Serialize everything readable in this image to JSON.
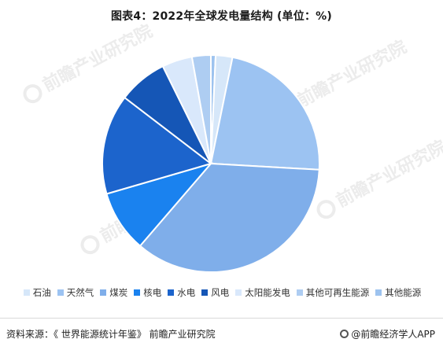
{
  "chart_data": {
    "type": "pie",
    "title": "图表4：2022年全球发电量结构 (单位：%)",
    "start_angle": "top",
    "direction": "clockwise",
    "slices": [
      {
        "name": "其他能源",
        "value": 0.7,
        "color": "#9dc3ef"
      },
      {
        "name": "石油",
        "value": 2.5,
        "color": "#d6e7f9"
      },
      {
        "name": "天然气",
        "value": 22.7,
        "color": "#9cc3f2"
      },
      {
        "name": "煤炭",
        "value": 35.4,
        "color": "#7faeea"
      },
      {
        "name": "核电",
        "value": 9.2,
        "color": "#1a82ef"
      },
      {
        "name": "水电",
        "value": 14.9,
        "color": "#1c64cc"
      },
      {
        "name": "风电",
        "value": 7.3,
        "color": "#1556b6"
      },
      {
        "name": "太阳能发电",
        "value": 4.5,
        "color": "#d9e8fb"
      },
      {
        "name": "其他可再生能源",
        "value": 2.8,
        "color": "#aecdf2"
      }
    ],
    "legend": {
      "placement": "bottom",
      "order": [
        "石油",
        "天然气",
        "煤炭",
        "核电",
        "水电",
        "风电",
        "太阳能发电",
        "其他可再生能源",
        "其他能源"
      ]
    }
  },
  "footer": {
    "source": "资料来源：《 世界能源统计年鉴》 前瞻产业研究院",
    "brand": "@前瞻经济学人APP"
  },
  "watermark": {
    "text": "前瞻产业研究院"
  }
}
